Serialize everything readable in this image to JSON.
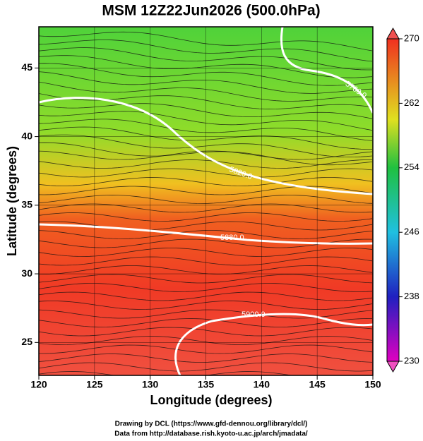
{
  "title": "MSM 12Z22Jun2026 (500.0hPa)",
  "x_label": "Longitude (degrees)",
  "y_label": "Latitude  (degrees)",
  "xlim": [
    120,
    150
  ],
  "ylim": [
    22.6,
    48.0
  ],
  "xticks": [
    120,
    125,
    130,
    135,
    140,
    145,
    150
  ],
  "yticks": [
    25,
    30,
    35,
    40,
    45
  ],
  "colorbar": {
    "lim": [
      230,
      270
    ],
    "ticks": [
      230,
      238,
      246,
      254,
      262,
      270
    ]
  },
  "contour_labels": [
    "5760.0",
    "5820.0",
    "5880.0",
    "5900.0"
  ],
  "credits": [
    "Drawing by DCL (https://www.gfd-dennou.org/library/dcl/)",
    "Data from http://database.rish.kyoto-u.ac.jp/arch/jmadata/"
  ]
}
